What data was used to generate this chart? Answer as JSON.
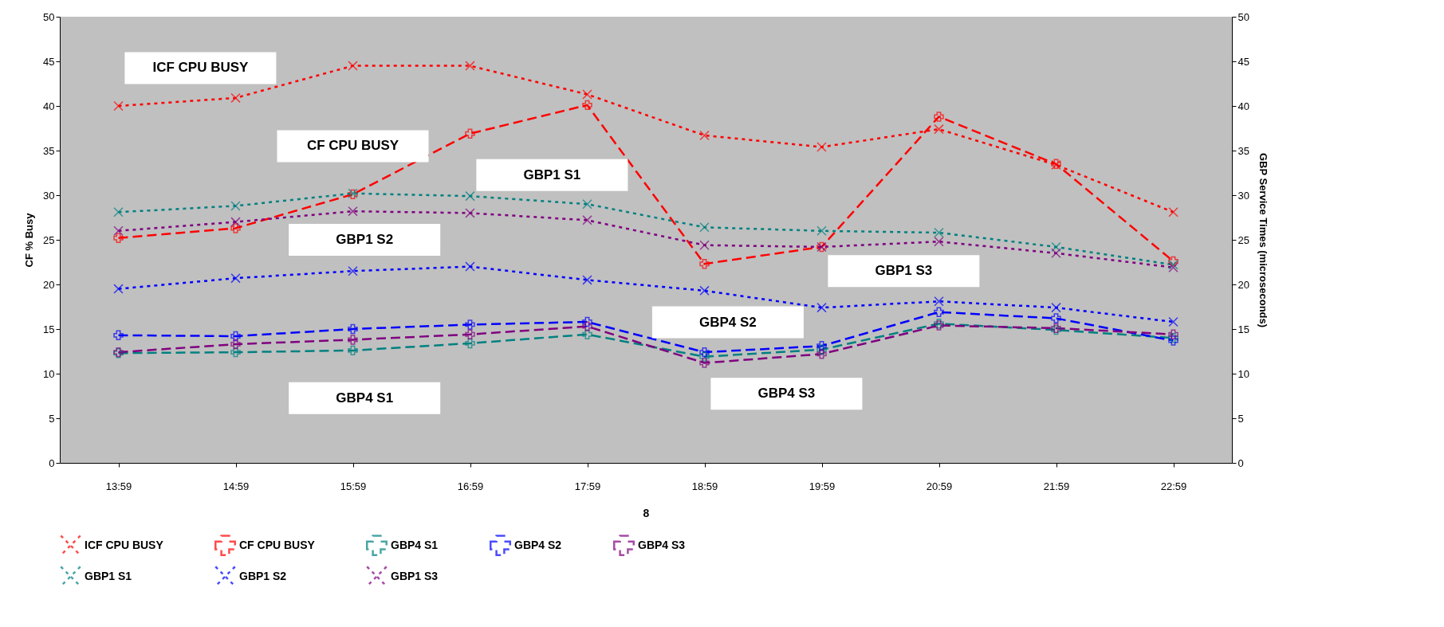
{
  "chart_data": {
    "type": "line",
    "categories": [
      "13:59",
      "14:59",
      "15:59",
      "16:59",
      "17:59",
      "18:59",
      "19:59",
      "20:59",
      "21:59",
      "22:59"
    ],
    "xlabel": "8",
    "ylabel": "CF % Busy",
    "y2label": "GBP Service Times (microseconds)",
    "ylim": [
      0,
      50
    ],
    "yticks": [
      0,
      5,
      10,
      15,
      20,
      25,
      30,
      35,
      40,
      45,
      50
    ],
    "y2lim": [
      0,
      50
    ],
    "y2ticks": [
      0,
      5,
      10,
      15,
      20,
      25,
      30,
      35,
      40,
      45,
      50
    ],
    "legend": "bottom",
    "series": [
      {
        "name": "ICF CPU BUSY",
        "color": "#ff0000",
        "marker": "cross",
        "line_style": "dotted",
        "values": [
          40.0,
          40.9,
          44.5,
          44.5,
          41.3,
          36.7,
          35.4,
          37.4,
          33.4,
          28.1
        ]
      },
      {
        "name": "CF CPU BUSY",
        "color": "#ff0000",
        "marker": "plus",
        "line_style": "dashed",
        "values": [
          25.2,
          26.3,
          30.1,
          36.9,
          40.1,
          22.3,
          24.2,
          38.8,
          33.5,
          22.6
        ]
      },
      {
        "name": "GBP4 S1",
        "color": "#008080",
        "marker": "plus",
        "line_style": "dashed",
        "axis": "y2",
        "values": [
          12.3,
          12.4,
          12.6,
          13.4,
          14.4,
          11.9,
          12.7,
          15.6,
          14.9,
          14.0
        ]
      },
      {
        "name": "GBP4 S2",
        "color": "#0000ff",
        "marker": "plus",
        "line_style": "dashed",
        "axis": "y2",
        "values": [
          14.3,
          14.2,
          15.0,
          15.5,
          15.8,
          12.4,
          13.1,
          16.9,
          16.2,
          13.7
        ]
      },
      {
        "name": "GBP4 S3",
        "color": "#800080",
        "marker": "plus",
        "line_style": "dashed",
        "axis": "y2",
        "values": [
          12.4,
          13.3,
          13.8,
          14.4,
          15.3,
          11.2,
          12.2,
          15.4,
          15.1,
          14.4
        ]
      },
      {
        "name": "GBP1 S1",
        "color": "#008080",
        "marker": "cross",
        "line_style": "dotted",
        "axis": "y2",
        "values": [
          28.1,
          28.8,
          30.2,
          29.9,
          29.0,
          26.4,
          26.0,
          25.8,
          24.2,
          22.2
        ]
      },
      {
        "name": "GBP1 S2",
        "color": "#0000ff",
        "marker": "cross",
        "line_style": "dotted",
        "axis": "y2",
        "values": [
          19.5,
          20.7,
          21.5,
          22.0,
          20.5,
          19.3,
          17.4,
          18.1,
          17.4,
          15.8
        ]
      },
      {
        "name": "GBP1 S3",
        "color": "#800080",
        "marker": "cross",
        "line_style": "dotted",
        "axis": "y2",
        "values": [
          26.0,
          27.0,
          28.2,
          28.0,
          27.2,
          24.4,
          24.2,
          24.8,
          23.5,
          21.9
        ]
      }
    ],
    "annotations": [
      "ICF CPU BUSY",
      "CF CPU BUSY",
      "GBP1 S1",
      "GBP1 S2",
      "GBP4 S1",
      "GBP4 S2",
      "GBP1 S3",
      "GBP4 S3"
    ]
  }
}
